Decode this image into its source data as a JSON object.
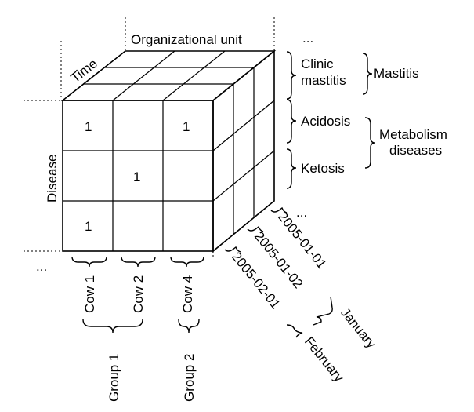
{
  "colors": {
    "front": "#d9d9d9",
    "top": "#8c8c8c",
    "side": "#b3b3b3",
    "line": "#000000"
  },
  "axes": {
    "organizational_unit": "Organizational unit",
    "time": "Time",
    "disease": "Disease",
    "ellipsis": "..."
  },
  "cells": {
    "r1c1": "1",
    "r1c3": "1",
    "r2c2": "1",
    "r3c1": "1"
  },
  "right_labels": {
    "clinic_line1": "Clinic",
    "clinic_line2": "mastitis",
    "mastitis": "Mastitis",
    "acidosis": "Acidosis",
    "ketosis": "Ketosis",
    "metabolism_line1": "Metabolism",
    "metabolism_line2": "diseases"
  },
  "bottom_labels": {
    "cow1": "Cow 1",
    "cow2": "Cow 2",
    "cow4": "Cow 4",
    "group1": "Group 1",
    "group2": "Group 2"
  },
  "dates": {
    "d1": "2005-01-01",
    "d2": "2005-01-02",
    "d3": "2005-02-01",
    "january": "January",
    "february": "February"
  }
}
